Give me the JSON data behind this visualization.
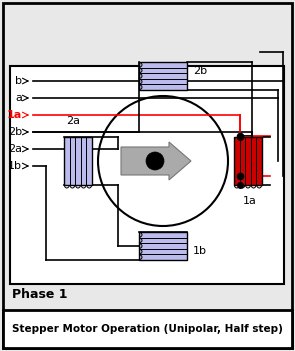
{
  "title": "Stepper Motor Operation (Unipolar, Half step)",
  "phase_text": "Phase 1",
  "bg_color": "#e8e8e8",
  "inner_bg": "#ffffff",
  "active_coil_color": "#cc0000",
  "inactive_coil_color": "#9999dd",
  "inactive_coil_fill": "#bbbbee",
  "wire_labels": [
    "b",
    "a",
    "1a",
    "2b",
    "2a",
    "1b"
  ],
  "red_wire_label": "1a"
}
